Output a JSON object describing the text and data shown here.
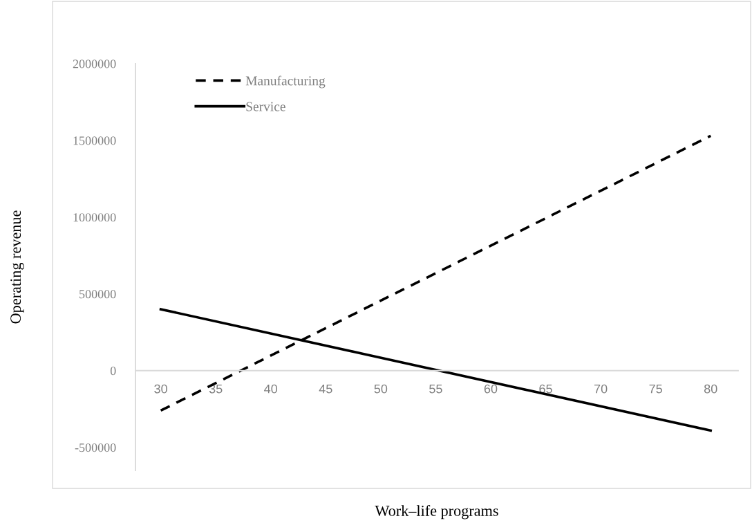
{
  "chart_data": {
    "type": "line",
    "xlabel": "Work–life programs",
    "ylabel": "Operating revenue",
    "x": [
      30,
      80
    ],
    "series": [
      {
        "name": "Manufacturing",
        "color": "#000000",
        "line_style": "dashed",
        "values": [
          -260000,
          1530000
        ]
      },
      {
        "name": "Service",
        "color": "#000000",
        "line_style": "solid",
        "values": [
          400000,
          -390000
        ]
      }
    ],
    "xlim": [
      27.7,
      82.5
    ],
    "xticks": [
      30,
      35,
      40,
      45,
      50,
      55,
      60,
      65,
      70,
      75,
      80
    ],
    "ylim": [
      -650000,
      2000000
    ],
    "yticks": [
      -500000,
      0,
      500000,
      1000000,
      1500000,
      2000000
    ],
    "grid": false,
    "legend": "top left",
    "marker": "none"
  }
}
